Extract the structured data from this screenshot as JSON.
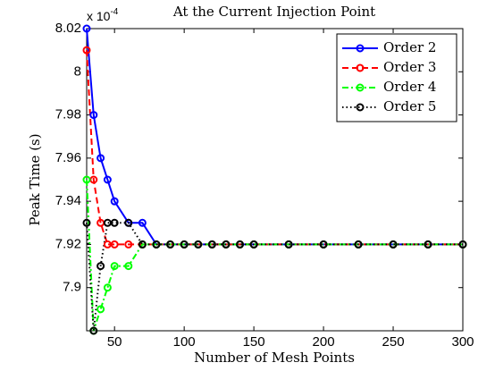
{
  "chart_data": {
    "type": "line",
    "title": "At the Current Injection Point",
    "x_label": "Number of Mesh Points",
    "y_label": "Peak Time (s)",
    "y_multiplier": {
      "base": "x 10",
      "exponent": "-4"
    },
    "x": [
      30,
      35,
      40,
      45,
      50,
      60,
      70,
      80,
      90,
      100,
      110,
      120,
      130,
      140,
      150,
      175,
      200,
      225,
      250,
      275,
      300
    ],
    "series": [
      {
        "name": "Order 2",
        "color": "#0000ff",
        "dash": "solid",
        "values": [
          8.02,
          7.98,
          7.96,
          7.95,
          7.94,
          7.93,
          7.93,
          7.92,
          7.92,
          7.92,
          7.92,
          7.92,
          7.92,
          7.92,
          7.92,
          7.92,
          7.92,
          7.92,
          7.92,
          7.92,
          7.92
        ]
      },
      {
        "name": "Order 3",
        "color": "#ff0000",
        "dash": "dashed",
        "values": [
          8.01,
          7.95,
          7.93,
          7.92,
          7.92,
          7.92,
          7.92,
          7.92,
          7.92,
          7.92,
          7.92,
          7.92,
          7.92,
          7.92,
          7.92,
          7.92,
          7.92,
          7.92,
          7.92,
          7.92,
          7.92
        ]
      },
      {
        "name": "Order 4",
        "color": "#00ff00",
        "dash": "dashdot",
        "values": [
          7.95,
          7.88,
          7.89,
          7.9,
          7.91,
          7.91,
          7.92,
          7.92,
          7.92,
          7.92,
          7.92,
          7.92,
          7.92,
          7.92,
          7.92,
          7.92,
          7.92,
          7.92,
          7.92,
          7.92,
          7.92
        ]
      },
      {
        "name": "Order 5",
        "color": "#000000",
        "dash": "dotted",
        "values": [
          7.93,
          7.88,
          7.91,
          7.93,
          7.93,
          7.93,
          7.92,
          7.92,
          7.92,
          7.92,
          7.92,
          7.92,
          7.92,
          7.92,
          7.92,
          7.92,
          7.92,
          7.92,
          7.92,
          7.92,
          7.92
        ]
      }
    ],
    "xlim": [
      30,
      300
    ],
    "xticks": [
      50,
      100,
      150,
      200,
      250,
      300
    ],
    "ylim": [
      7.88,
      8.02
    ],
    "yticks": [
      7.9,
      7.92,
      7.94,
      7.96,
      7.98,
      8,
      8.02
    ],
    "grid": false,
    "legend": "northeast"
  }
}
